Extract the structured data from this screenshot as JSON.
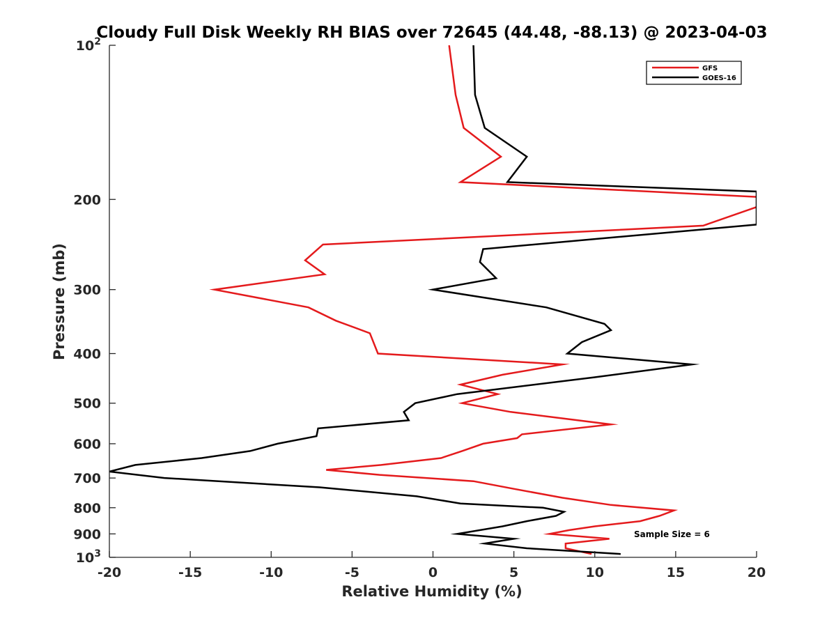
{
  "chart_data": {
    "type": "line",
    "title": "Cloudy Full Disk Weekly RH BIAS over 72645 (44.48, -88.13) @ 2023-04-03",
    "xlabel": "Relative Humidity (%)",
    "ylabel": "Pressure (mb)",
    "xlim": [
      -20,
      20
    ],
    "ylim": [
      100,
      1000
    ],
    "y_scale": "log",
    "y_reversed": true,
    "grid": false,
    "legend_position": "top-right",
    "x_ticks": [
      -20,
      -15,
      -10,
      -5,
      0,
      5,
      10,
      15,
      20
    ],
    "x_tick_labels": [
      "-20",
      "-15",
      "-10",
      "-5",
      "0",
      "5",
      "10",
      "15",
      "20"
    ],
    "y_ticks": [
      100,
      200,
      300,
      400,
      500,
      600,
      700,
      800,
      900,
      1000
    ],
    "y_tick_labels": [
      "10²",
      "200",
      "300",
      "400",
      "500",
      "600",
      "700",
      "800",
      "900",
      "10³"
    ],
    "annotation": "Sample Size = 6",
    "series": [
      {
        "name": "GFS",
        "color": "#e41a1c",
        "points": [
          [
            1.0,
            100
          ],
          [
            1.4,
            125
          ],
          [
            1.9,
            145
          ],
          [
            4.2,
            165
          ],
          [
            1.7,
            185
          ],
          [
            20.3,
            198
          ],
          [
            20.0,
            207
          ],
          [
            16.7,
            225
          ],
          [
            -6.8,
            245
          ],
          [
            -7.9,
            263
          ],
          [
            -6.7,
            280
          ],
          [
            -13.5,
            300
          ],
          [
            -7.7,
            325
          ],
          [
            -6.0,
            345
          ],
          [
            -3.9,
            365
          ],
          [
            -3.4,
            400
          ],
          [
            8.0,
            420
          ],
          [
            4.3,
            440
          ],
          [
            1.7,
            460
          ],
          [
            4.0,
            480
          ],
          [
            1.8,
            500
          ],
          [
            4.8,
            520
          ],
          [
            11.0,
            550
          ],
          [
            5.5,
            575
          ],
          [
            5.2,
            585
          ],
          [
            3.1,
            600
          ],
          [
            1.8,
            620
          ],
          [
            0.5,
            640
          ],
          [
            -3.2,
            660
          ],
          [
            -6.6,
            675
          ],
          [
            -3.3,
            690
          ],
          [
            2.5,
            710
          ],
          [
            5.0,
            735
          ],
          [
            8.0,
            765
          ],
          [
            11.0,
            790
          ],
          [
            14.9,
            810
          ],
          [
            14.0,
            830
          ],
          [
            12.8,
            850
          ],
          [
            10.0,
            870
          ],
          [
            8.4,
            885
          ],
          [
            7.2,
            900
          ],
          [
            10.9,
            920
          ],
          [
            8.2,
            940
          ],
          [
            8.2,
            960
          ],
          [
            9.8,
            985
          ]
        ]
      },
      {
        "name": "GOES-16",
        "color": "#000000",
        "points": [
          [
            2.5,
            100
          ],
          [
            2.6,
            125
          ],
          [
            3.2,
            145
          ],
          [
            5.8,
            165
          ],
          [
            4.6,
            185
          ],
          [
            20.0,
            193
          ],
          [
            20.0,
            224
          ],
          [
            3.1,
            250
          ],
          [
            2.9,
            265
          ],
          [
            3.9,
            285
          ],
          [
            0.0,
            300
          ],
          [
            7.0,
            325
          ],
          [
            10.6,
            350
          ],
          [
            11.0,
            360
          ],
          [
            9.2,
            380
          ],
          [
            8.3,
            400
          ],
          [
            16.0,
            420
          ],
          [
            10.0,
            445
          ],
          [
            1.5,
            480
          ],
          [
            -1.1,
            500
          ],
          [
            -1.8,
            520
          ],
          [
            -1.5,
            540
          ],
          [
            -7.1,
            560
          ],
          [
            -7.2,
            580
          ],
          [
            -9.6,
            600
          ],
          [
            -11.3,
            620
          ],
          [
            -14.3,
            640
          ],
          [
            -18.4,
            660
          ],
          [
            -20.0,
            680
          ],
          [
            -16.6,
            700
          ],
          [
            -7.0,
            730
          ],
          [
            -1.0,
            760
          ],
          [
            1.7,
            785
          ],
          [
            6.8,
            800
          ],
          [
            8.1,
            815
          ],
          [
            7.6,
            830
          ],
          [
            5.8,
            850
          ],
          [
            4.3,
            870
          ],
          [
            1.5,
            900
          ],
          [
            5.0,
            920
          ],
          [
            3.2,
            940
          ],
          [
            5.8,
            960
          ],
          [
            11.6,
            985
          ]
        ]
      }
    ]
  }
}
